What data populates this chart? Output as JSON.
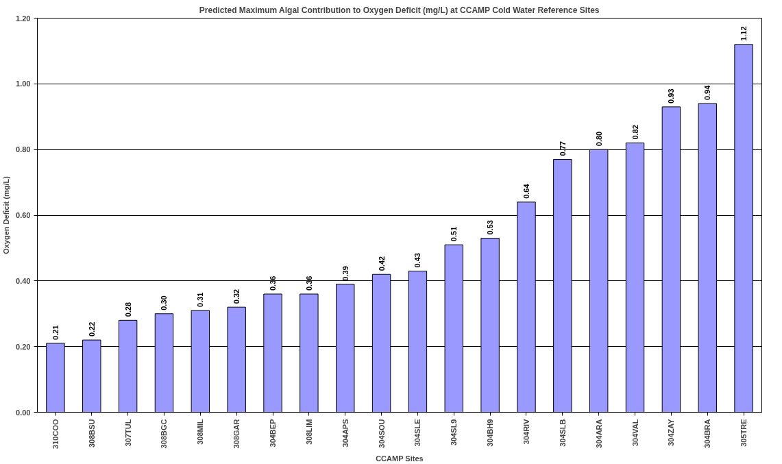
{
  "chart_data": {
    "type": "bar",
    "title": "Predicted Maximum Algal Contribution to Oxygen Deficit (mg/L) at CCAMP Cold Water Reference Sites",
    "xlabel": "CCAMP Sites",
    "ylabel": "Oxygen Deficit (mg/L)",
    "categories": [
      "310COO",
      "308BSU",
      "307TUL",
      "308BGC",
      "308MIL",
      "308GAR",
      "304BEP",
      "308LIM",
      "304APS",
      "304SOU",
      "304SLE",
      "304SL9",
      "304BH9",
      "304RIV",
      "304SLB",
      "304ARA",
      "304VAL",
      "304ZAY",
      "304BRA",
      "305TRE"
    ],
    "values": [
      0.21,
      0.22,
      0.28,
      0.3,
      0.31,
      0.32,
      0.36,
      0.36,
      0.39,
      0.42,
      0.43,
      0.51,
      0.53,
      0.64,
      0.77,
      0.8,
      0.82,
      0.93,
      0.94,
      1.12
    ],
    "value_labels": [
      "0.21",
      "0.22",
      "0.28",
      "0.30",
      "0.31",
      "0.32",
      "0.36",
      "0.36",
      "0.39",
      "0.42",
      "0.43",
      "0.51",
      "0.53",
      "0.64",
      "0.77",
      "0.80",
      "0.82",
      "0.93",
      "0.94",
      "1.12"
    ],
    "color": "#9999ff",
    "ylim": [
      0,
      1.2
    ],
    "yticks": [
      {
        "value": 0,
        "label": "0.00"
      },
      {
        "value": 0.2,
        "label": "0.20"
      },
      {
        "value": 0.4,
        "label": "0.40"
      },
      {
        "value": 0.6,
        "label": "0.60"
      },
      {
        "value": 0.8,
        "label": "0.80"
      },
      {
        "value": 1.0,
        "label": "1.00"
      },
      {
        "value": 1.2,
        "label": "1.20"
      }
    ],
    "grid": "y"
  }
}
